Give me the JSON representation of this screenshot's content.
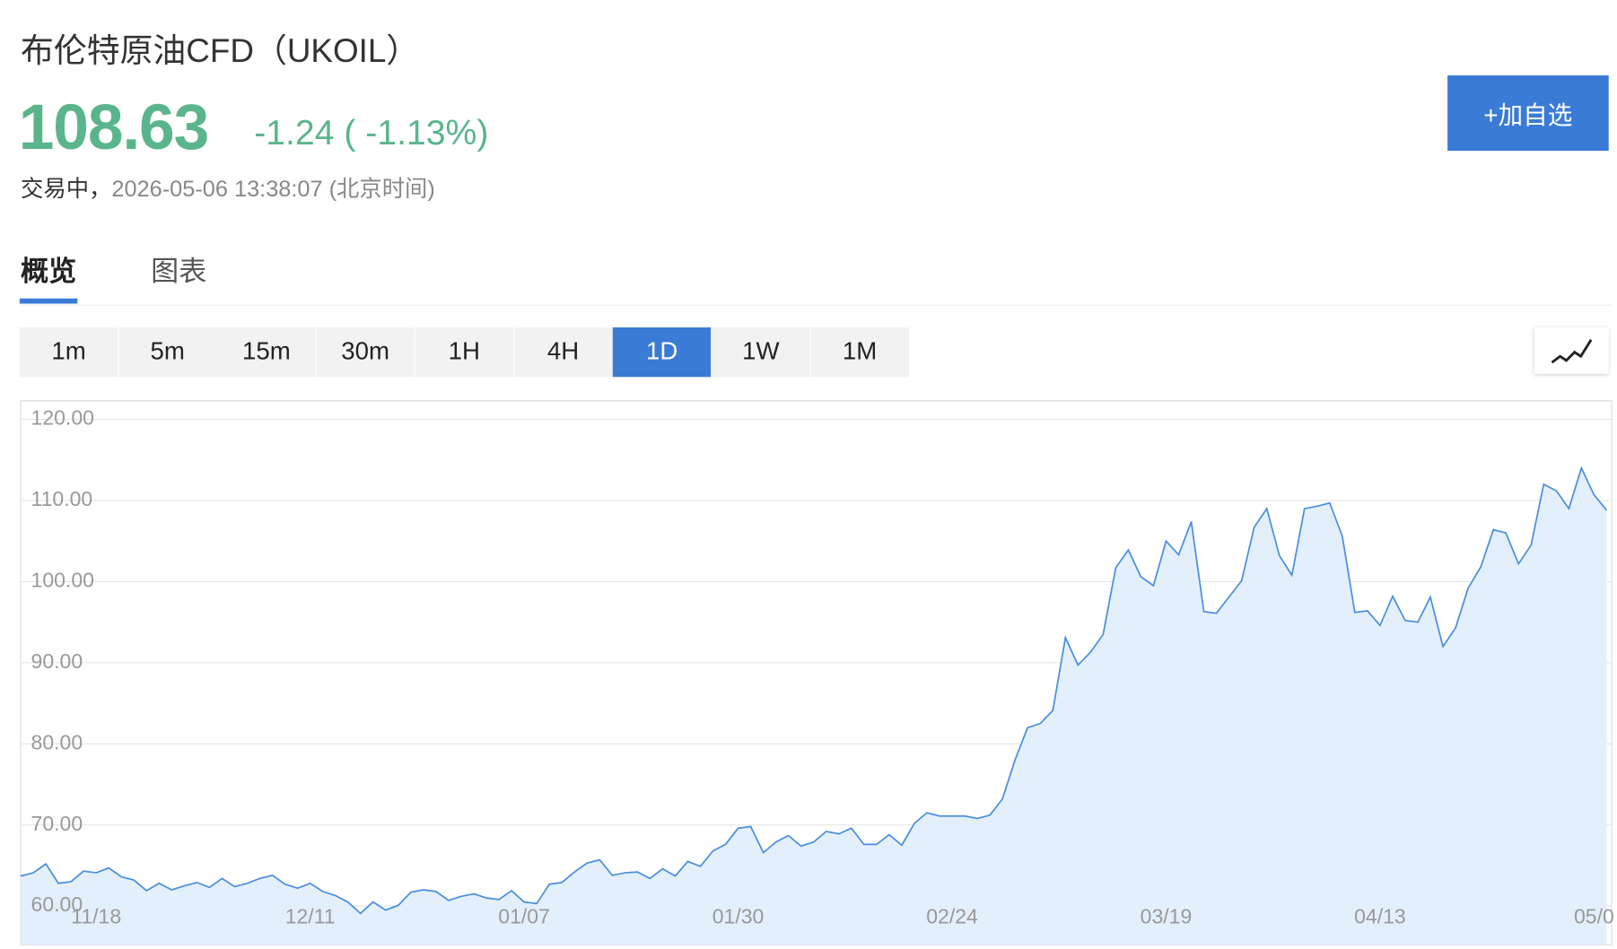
{
  "header": {
    "title": "布伦特原油CFD（UKOIL）",
    "price": "108.63",
    "change": "-1.24",
    "change_percent": "( -1.13%)",
    "status": "交易中，",
    "time": "2026-05-06 13:38:07 (北京时间)",
    "button": "+加自选"
  },
  "tabs": {
    "items": [
      "概览",
      "图表"
    ],
    "selected": 0
  },
  "intervals": {
    "items": [
      "1m",
      "5m",
      "15m",
      "30m",
      "1H",
      "4H",
      "1D",
      "1W",
      "1M"
    ],
    "selected": 6
  },
  "chart_data": {
    "type": "area",
    "color": "#4a8fdd",
    "fill": "#e3effb",
    "grid": true,
    "ylim": [
      55.2,
      122.3
    ],
    "yticks": [
      {
        "value": 60,
        "label": "60.00"
      },
      {
        "value": 70,
        "label": "70.00"
      },
      {
        "value": 80,
        "label": "80.00"
      },
      {
        "value": 90,
        "label": "90.00"
      },
      {
        "value": 100,
        "label": "100.00"
      },
      {
        "value": 110,
        "label": "110.00"
      },
      {
        "value": 120,
        "label": "120.00"
      }
    ],
    "categories": [
      null,
      null,
      null,
      null,
      null,
      null,
      "11/18",
      null,
      null,
      null,
      null,
      null,
      null,
      null,
      null,
      null,
      null,
      null,
      null,
      null,
      null,
      null,
      null,
      "12/11",
      null,
      null,
      null,
      null,
      null,
      null,
      null,
      null,
      null,
      null,
      null,
      null,
      null,
      null,
      null,
      null,
      "01/07",
      null,
      null,
      null,
      null,
      null,
      null,
      null,
      null,
      null,
      null,
      null,
      null,
      null,
      null,
      null,
      null,
      "01/30",
      null,
      null,
      null,
      null,
      null,
      null,
      null,
      null,
      null,
      null,
      null,
      null,
      null,
      null,
      null,
      null,
      "02/24",
      null,
      null,
      null,
      null,
      null,
      null,
      null,
      null,
      null,
      null,
      null,
      null,
      null,
      null,
      null,
      null,
      "03/19",
      null,
      null,
      null,
      null,
      null,
      null,
      null,
      null,
      null,
      null,
      null,
      null,
      null,
      null,
      null,
      null,
      "04/13",
      null,
      null,
      null,
      null,
      null,
      null,
      null,
      null,
      null,
      null,
      null,
      null,
      null,
      null,
      null,
      null,
      "05/0",
      null
    ],
    "values": [
      63.7,
      64.1,
      65.2,
      62.8,
      63.0,
      64.3,
      64.1,
      64.7,
      63.6,
      63.2,
      61.9,
      62.8,
      62.0,
      62.5,
      62.9,
      62.3,
      63.4,
      62.4,
      62.8,
      63.4,
      63.8,
      62.7,
      62.2,
      62.8,
      61.8,
      61.3,
      60.5,
      59.1,
      60.5,
      59.5,
      60.1,
      61.7,
      62.0,
      61.8,
      60.7,
      61.2,
      61.5,
      61.0,
      60.8,
      61.9,
      60.5,
      60.3,
      62.7,
      62.9,
      64.2,
      65.3,
      65.7,
      63.8,
      64.1,
      64.2,
      63.4,
      64.6,
      63.7,
      65.5,
      64.9,
      66.8,
      67.6,
      69.6,
      69.8,
      66.6,
      67.9,
      68.7,
      67.4,
      67.9,
      69.2,
      68.9,
      69.6,
      67.6,
      67.6,
      68.8,
      67.5,
      70.2,
      71.5,
      71.1,
      71.1,
      71.1,
      70.8,
      71.2,
      73.2,
      78.0,
      82.0,
      82.5,
      84.1,
      93.1,
      89.7,
      91.3,
      93.5,
      101.7,
      103.9,
      100.6,
      99.5,
      105.0,
      103.3,
      107.4,
      96.3,
      96.1,
      98.1,
      100.1,
      106.7,
      109.0,
      103.2,
      100.8,
      109.0,
      109.3,
      109.7,
      105.6,
      96.2,
      96.4,
      94.6,
      98.2,
      95.2,
      95.0,
      98.1,
      92.0,
      94.3,
      99.2,
      101.8,
      106.4,
      106.0,
      102.2,
      104.5,
      112.0,
      111.2,
      109.0,
      114.0,
      110.7,
      108.8
    ]
  }
}
